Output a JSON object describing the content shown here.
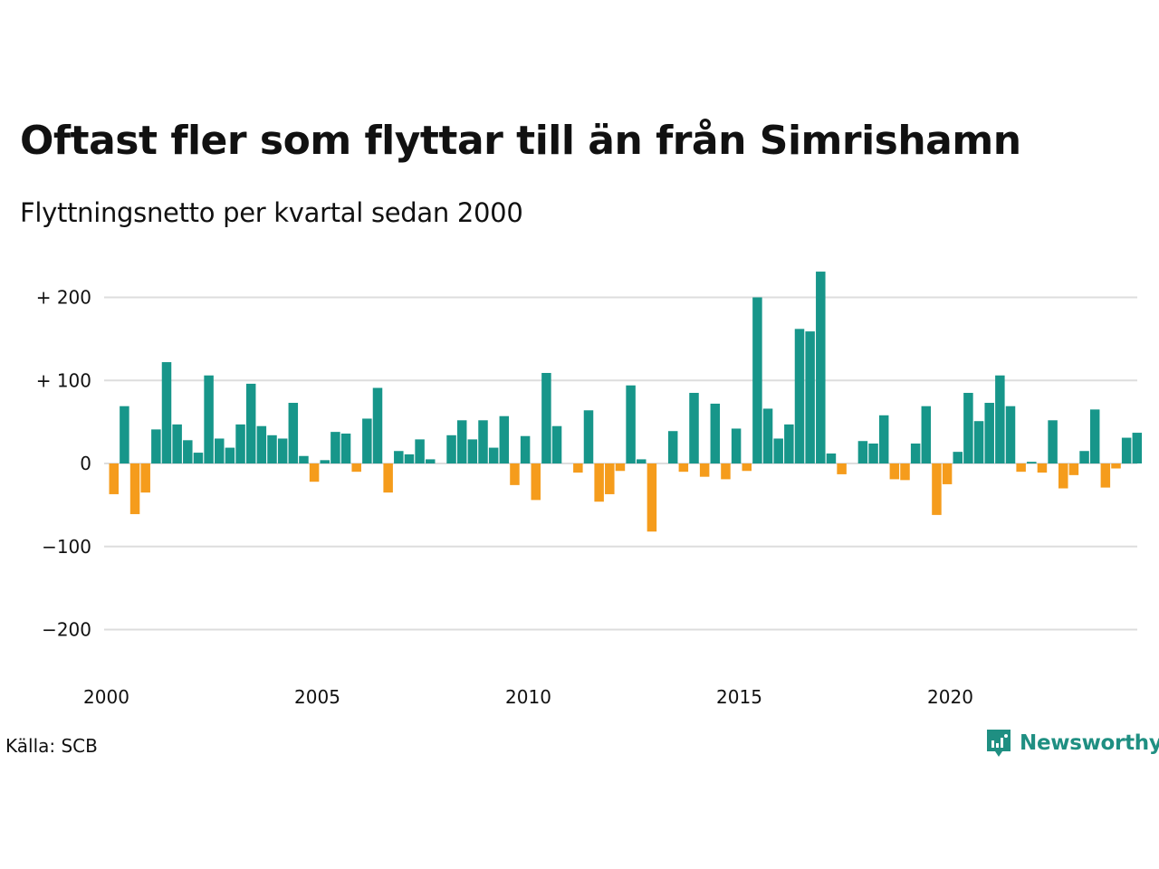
{
  "header": {
    "title": "Oftast fler som flyttar till än från Simrishamn",
    "subtitle": "Flyttningsnetto per kvartal sedan 2000"
  },
  "footer": {
    "source": "Källa: SCB",
    "brand": "Newsworthy"
  },
  "colors": {
    "positive": "#17968a",
    "negative": "#f59c1c",
    "grid": "#dddddd",
    "brand": "#1f8f82"
  },
  "chart_data": {
    "type": "bar",
    "x_start": "2000 Q1",
    "y_ticks": [
      {
        "value": 200,
        "label": "+ 200"
      },
      {
        "value": 100,
        "label": "+ 100"
      },
      {
        "value": 0,
        "label": "0"
      },
      {
        "value": -100,
        "label": "−100"
      },
      {
        "value": -200,
        "label": "−200"
      }
    ],
    "x_ticks": [
      "2000",
      "2005",
      "2010",
      "2015",
      "2020"
    ],
    "ylim": [
      -200,
      230
    ],
    "grid": true,
    "values": [
      -37,
      69,
      -61,
      -35,
      41,
      122,
      47,
      28,
      13,
      106,
      30,
      19,
      47,
      96,
      45,
      34,
      30,
      73,
      9,
      -22,
      4,
      38,
      36,
      -10,
      54,
      91,
      -35,
      15,
      11,
      29,
      5,
      0,
      34,
      52,
      29,
      52,
      19,
      57,
      -26,
      33,
      -44,
      109,
      45,
      0,
      -11,
      64,
      -46,
      -37,
      -9,
      94,
      5,
      -82,
      0,
      39,
      -10,
      85,
      -16,
      72,
      -19,
      42,
      -9,
      200,
      66,
      30,
      47,
      162,
      159,
      231,
      12,
      -13,
      0,
      27,
      24,
      58,
      -19,
      -20,
      24,
      69,
      -62,
      -25,
      14,
      85,
      51,
      73,
      106,
      69,
      -10,
      2,
      -11,
      52,
      -30,
      -14,
      15,
      65,
      -29,
      -6,
      31,
      37
    ]
  }
}
